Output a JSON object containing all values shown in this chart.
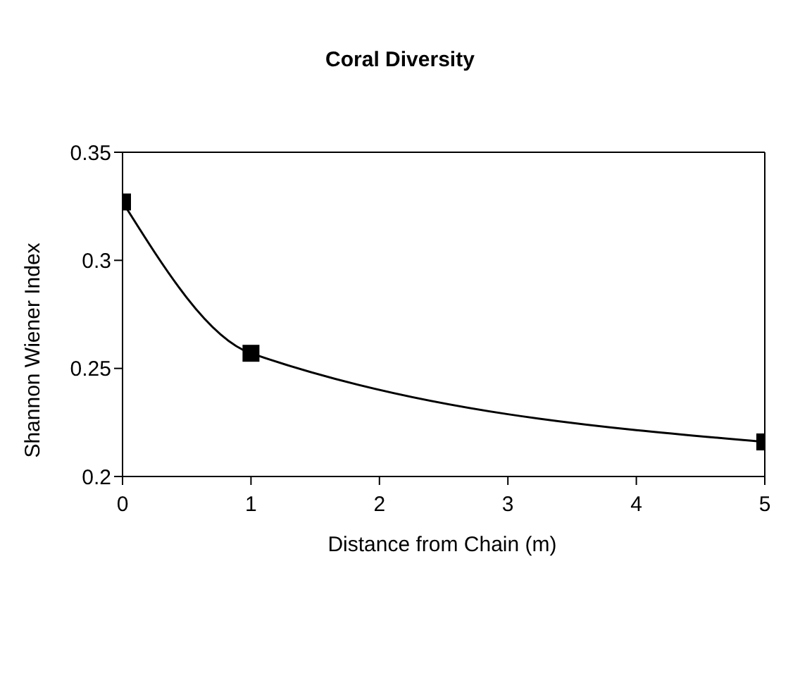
{
  "chart_data": {
    "type": "line",
    "title": "Coral Diversity",
    "xlabel": "Distance from Chain (m)",
    "ylabel": "Shannon Wiener Index",
    "x": [
      0,
      1,
      5
    ],
    "series": [
      {
        "color": "#000000",
        "values": [
          0.327,
          0.257,
          0.216
        ]
      }
    ],
    "xlim": [
      0,
      5
    ],
    "xticks": [
      0,
      1,
      2,
      3,
      4,
      5
    ],
    "ylim": [
      0.2,
      0.35
    ],
    "yticks": [
      0.2,
      0.25,
      0.3,
      0.35
    ],
    "grid": false,
    "legend": false,
    "marker": "square",
    "line_style": "solid"
  }
}
